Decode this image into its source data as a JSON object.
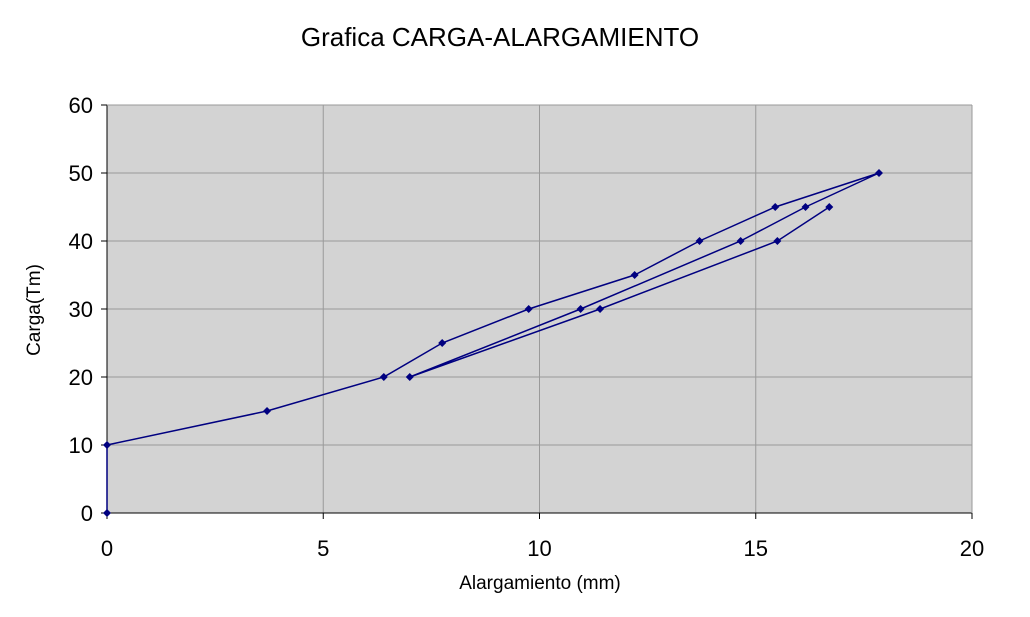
{
  "chart_data": {
    "type": "line",
    "title": "Grafica CARGA-ALARGAMIENTO",
    "xlabel": "Alargamiento (mm)",
    "ylabel": "Carga(Tm)",
    "xlim": [
      0,
      20
    ],
    "ylim": [
      0,
      60
    ],
    "xticks": [
      0,
      5,
      10,
      15,
      20
    ],
    "yticks": [
      0,
      10,
      20,
      30,
      40,
      50,
      60
    ],
    "grid": true,
    "legend": "none",
    "plot_background": "#d3d3d3",
    "series_color": "#000080",
    "series": [
      {
        "x": [
          0,
          0,
          3.7,
          6.4,
          7.75,
          9.75,
          12.2,
          13.7,
          15.45,
          17.85,
          16.15,
          14.65,
          10.95,
          7.0,
          11.4,
          15.5,
          16.7
        ],
        "y": [
          0,
          10,
          15,
          20,
          25,
          30,
          35,
          40,
          45,
          50,
          45,
          40,
          30,
          20,
          30,
          40,
          45
        ]
      }
    ]
  }
}
